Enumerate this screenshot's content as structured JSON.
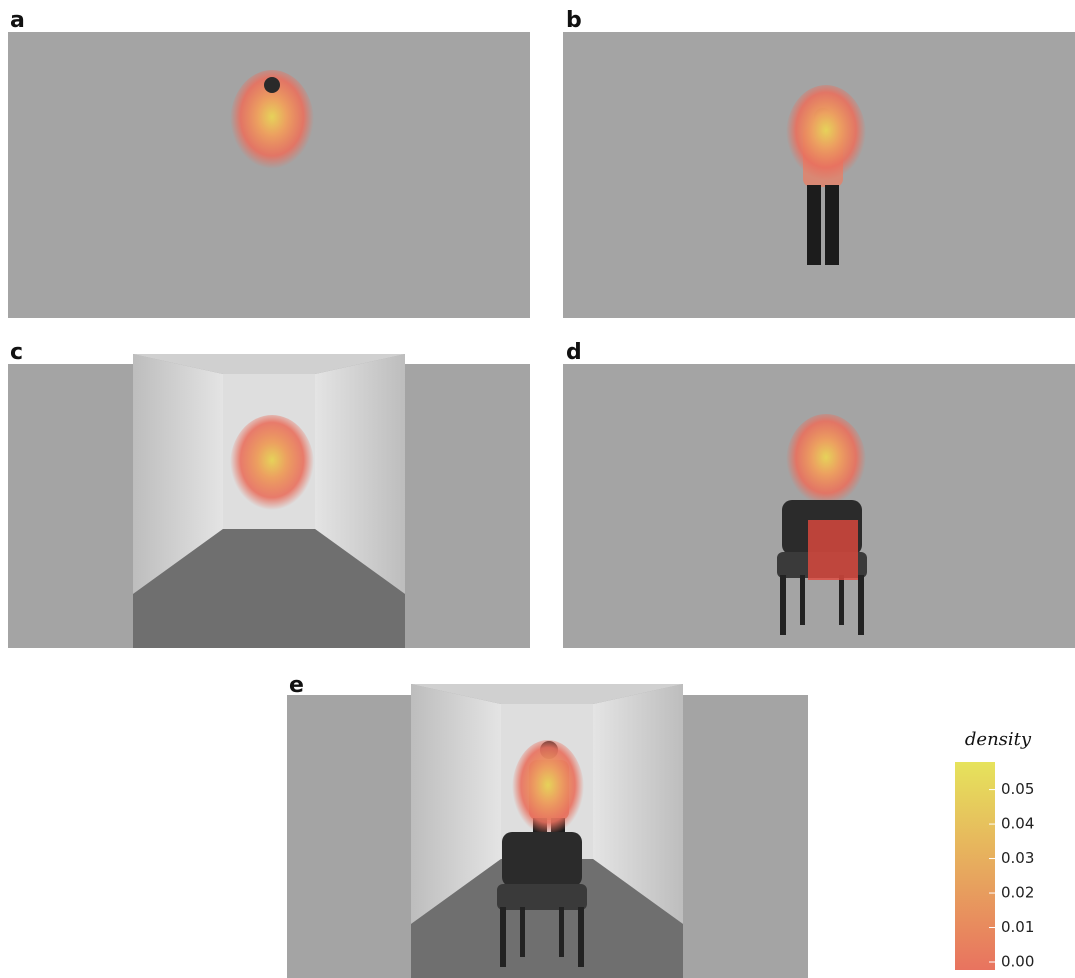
{
  "chart_data": {
    "type": "heatmap",
    "panels": [
      "a",
      "b",
      "c",
      "d",
      "e"
    ],
    "colorbar_title": "density",
    "colors": [
      "#e8735f",
      "#e6e35c"
    ],
    "ylim": [
      0,
      0.058
    ],
    "yticks": [
      {
        "value": 0,
        "label": "0.00"
      },
      0.01,
      0.02,
      0.03,
      0.04,
      0.05
    ]
  }
}
